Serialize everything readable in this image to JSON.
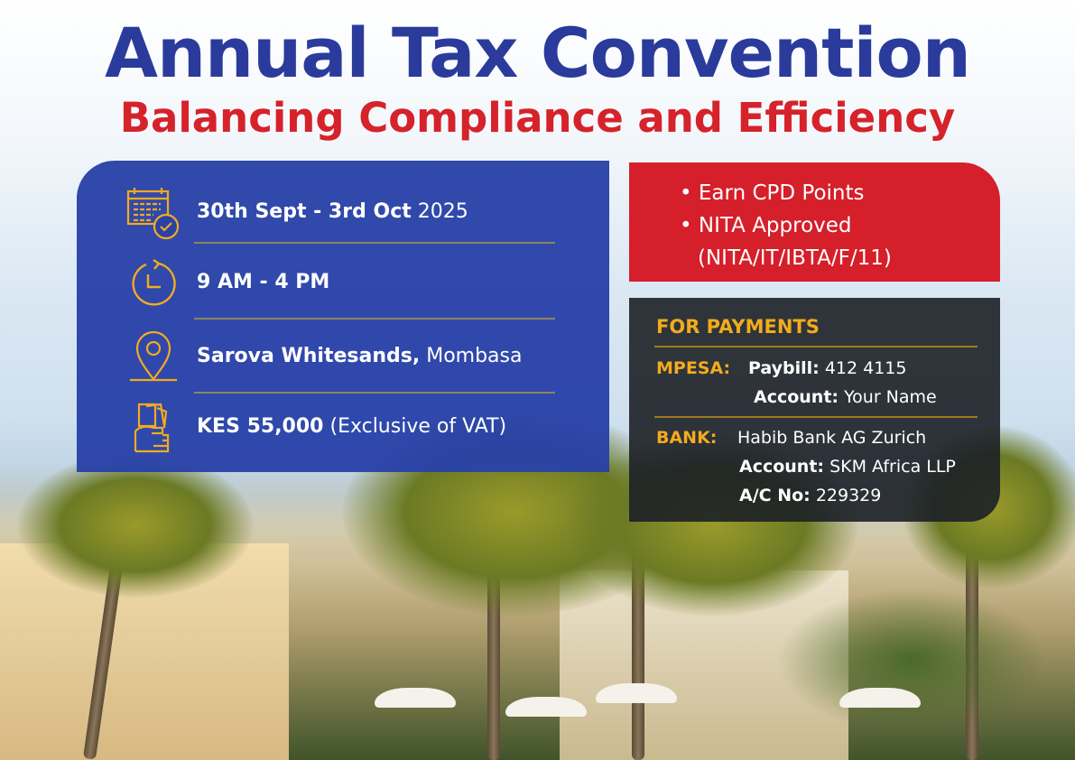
{
  "title": "Annual Tax Convention",
  "subtitle": "Balancing Compliance and Efficiency",
  "details": {
    "date_bold": "30th Sept - 3rd Oct",
    "date_year": "2025",
    "time": "9 AM - 4 PM",
    "venue_bold": "Sarova Whitesands,",
    "venue_city": "Mombasa",
    "price_bold": "KES 55,000",
    "price_note": "(Exclusive of VAT)"
  },
  "benefits": {
    "items": [
      "Earn CPD Points",
      "NITA Approved"
    ],
    "nita_code": "(NITA/IT/IBTA/F/11)"
  },
  "payments": {
    "heading": "FOR PAYMENTS",
    "mpesa_label": "MPESA:",
    "paybill_key": "Paybill:",
    "paybill_value": "412  4115",
    "mpesa_account_key": "Account:",
    "mpesa_account_value": "Your Name",
    "bank_label": "BANK:",
    "bank_name": "Habib Bank AG Zurich",
    "bank_account_key": "Account:",
    "bank_account_value": "SKM Africa LLP",
    "acno_key": "A/C No:",
    "acno_value": "229329"
  },
  "colors": {
    "title": "#2a3b9b",
    "accent_red": "#d6222a",
    "icon_gold": "#f3ab1d",
    "panel_blue": "#2942a8",
    "panel_dark": "#1c2026"
  }
}
